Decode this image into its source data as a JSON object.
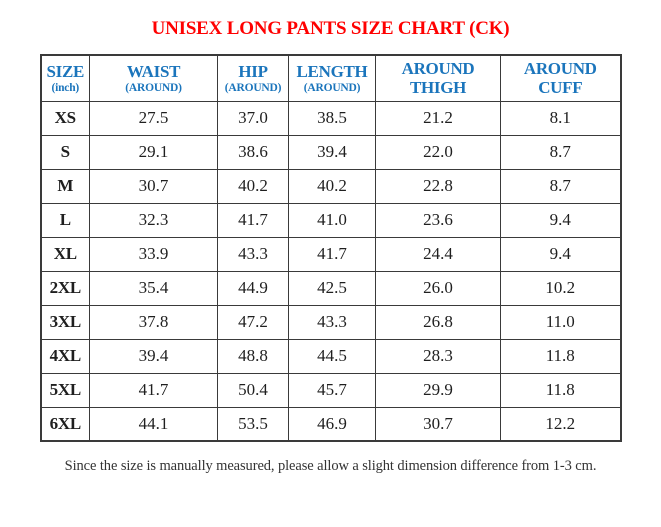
{
  "page": {
    "title": "UNISEX LONG PANTS SIZE CHART (CK)",
    "footnote": "Since the size is manually measured, please allow a slight dimension difference from 1-3 cm."
  },
  "table": {
    "columns": [
      {
        "line1": "SIZE",
        "line2": "(inch)",
        "line2_small": true
      },
      {
        "line1": "WAIST",
        "line2": "(AROUND)",
        "line2_small": true
      },
      {
        "line1": "HIP",
        "line2": "(AROUND)",
        "line2_small": true
      },
      {
        "line1": "LENGTH",
        "line2": "(AROUND)",
        "line2_small": true
      },
      {
        "line1": "AROUND",
        "line2": "THIGH",
        "line2_small": false
      },
      {
        "line1": "AROUND",
        "line2": "CUFF",
        "line2_small": false
      }
    ],
    "rows": [
      {
        "size": "XS",
        "values": [
          "27.5",
          "37.0",
          "38.5",
          "21.2",
          "8.1"
        ]
      },
      {
        "size": "S",
        "values": [
          "29.1",
          "38.6",
          "39.4",
          "22.0",
          "8.7"
        ]
      },
      {
        "size": "M",
        "values": [
          "30.7",
          "40.2",
          "40.2",
          "22.8",
          "8.7"
        ]
      },
      {
        "size": "L",
        "values": [
          "32.3",
          "41.7",
          "41.0",
          "23.6",
          "9.4"
        ]
      },
      {
        "size": "XL",
        "values": [
          "33.9",
          "43.3",
          "41.7",
          "24.4",
          "9.4"
        ]
      },
      {
        "size": "2XL",
        "values": [
          "35.4",
          "44.9",
          "42.5",
          "26.0",
          "10.2"
        ]
      },
      {
        "size": "3XL",
        "values": [
          "37.8",
          "47.2",
          "43.3",
          "26.8",
          "11.0"
        ]
      },
      {
        "size": "4XL",
        "values": [
          "39.4",
          "48.8",
          "44.5",
          "28.3",
          "11.8"
        ]
      },
      {
        "size": "5XL",
        "values": [
          "41.7",
          "50.4",
          "45.7",
          "29.9",
          "11.8"
        ]
      },
      {
        "size": "6XL",
        "values": [
          "44.1",
          "53.5",
          "46.9",
          "30.7",
          "12.2"
        ]
      }
    ]
  },
  "colors": {
    "title_red": "#FF0000",
    "size_label_red": "#FA0000",
    "header_blue": "#1B75BC",
    "value_text": "#1F1F1F",
    "border": "#3A3A3A",
    "footnote_text": "#333333"
  }
}
